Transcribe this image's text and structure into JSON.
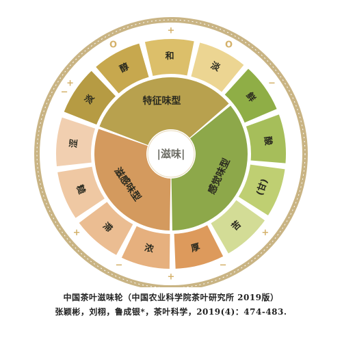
{
  "center": {
    "label": "|滋味|"
  },
  "inner_ring": [
    {
      "label": "特征味型",
      "color": "#b8a14e"
    },
    {
      "label": "感觉味型",
      "color": "#8da84a"
    },
    {
      "label": "滋感味型",
      "color": "#d49a5e"
    }
  ],
  "outer_ring": [
    {
      "label": "淡",
      "color": "#b69b43"
    },
    {
      "label": "醇",
      "color": "#c7a84e"
    },
    {
      "label": "和",
      "color": "#dcbf6a"
    },
    {
      "label": "淡",
      "color": "#ecd592"
    },
    {
      "label": "鲜",
      "color": "#8fae46"
    },
    {
      "label": "酸",
      "color": "#a6be5a"
    },
    {
      "label": "(甘)",
      "color": "#bfcf72"
    },
    {
      "label": "苦",
      "color": "#d3dc96"
    },
    {
      "label": "厚",
      "color": "#dd9a5c"
    },
    {
      "label": "浓",
      "color": "#e6b07e"
    },
    {
      "label": "滞",
      "color": "#ebbd92"
    },
    {
      "label": "糙",
      "color": "#efc8a3"
    },
    {
      "label": "涩",
      "color": "#f1cfb0"
    }
  ],
  "ring_signs": [
    "+",
    "O",
    "+",
    "O",
    "−",
    "+",
    "−",
    "+",
    "−",
    "+",
    "−"
  ],
  "colors": {
    "frame_bg": "#c9b484",
    "separator": "#ffffff",
    "dot": "#ffffff"
  },
  "caption": {
    "line1": "中国茶叶滋味轮（中国农业科学院茶叶研究所 2019版）",
    "line2": "张颖彬，刘栩，鲁成银*，茶叶科学，2019(4)：474-483."
  }
}
